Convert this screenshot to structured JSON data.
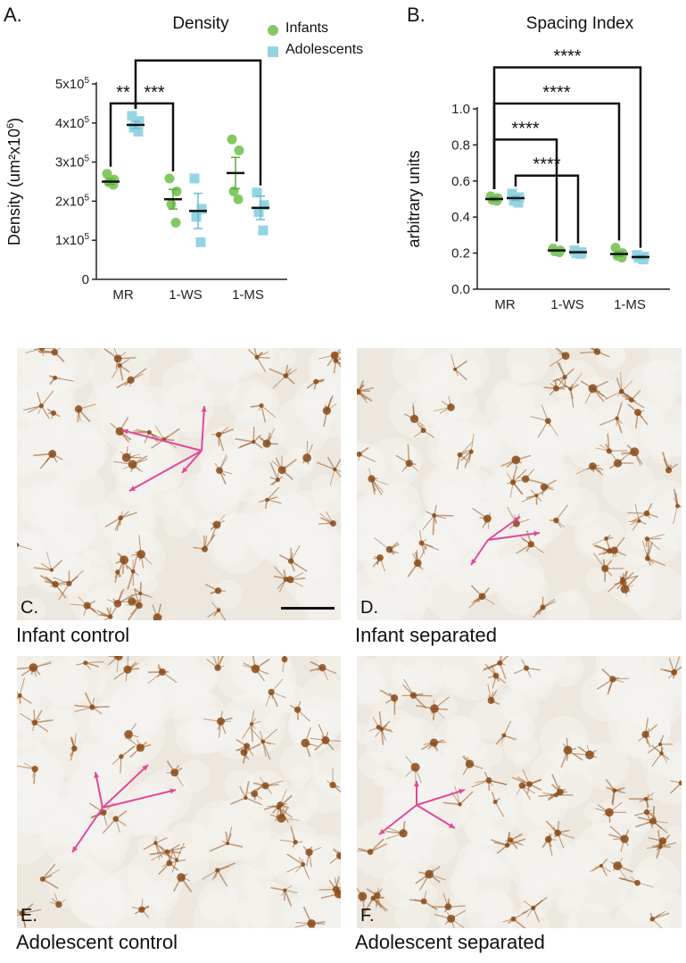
{
  "chart_data": [
    {
      "panel": "A.",
      "type": "scatter",
      "title": "Density",
      "ylabel": "Density (um²x10⁶)",
      "ylim": [
        0,
        500000
      ],
      "categories": [
        "MR",
        "1-WS",
        "1-MS"
      ],
      "yticks": [
        {
          "value": 0,
          "label": "0"
        },
        {
          "value": 100000,
          "label": "1x10⁵"
        },
        {
          "value": 200000,
          "label": "2x10⁵"
        },
        {
          "value": 300000,
          "label": "3x10⁵"
        },
        {
          "value": 400000,
          "label": "4x10⁵"
        },
        {
          "value": 500000,
          "label": "5x10⁵"
        }
      ],
      "series": [
        {
          "name": "Infants",
          "marker": "circle",
          "color": "#84c864",
          "groups": [
            {
              "category": "MR",
              "points": [
                270000,
                255000,
                248000,
                242000
              ],
              "mean": 250000,
              "sem": 7000
            },
            {
              "category": "1-WS",
              "points": [
                258000,
                225000,
                192000,
                145000
              ],
              "mean": 205000,
              "sem": 25000
            },
            {
              "category": "1-MS",
              "points": [
                358000,
                330000,
                225000,
                205000
              ],
              "mean": 272000,
              "sem": 40000
            }
          ]
        },
        {
          "name": "Adolescents",
          "marker": "square",
          "color": "#94d4e2",
          "groups": [
            {
              "category": "MR",
              "points": [
                418000,
                405000,
                388000,
                378000
              ],
              "mean": 395000,
              "sem": 9000
            },
            {
              "category": "1-WS",
              "points": [
                258000,
                180000,
                160000,
                95000
              ],
              "mean": 175000,
              "sem": 45000
            },
            {
              "category": "1-MS",
              "points": [
                222000,
                190000,
                172000,
                125000
              ],
              "mean": 183000,
              "sem": 30000
            }
          ]
        }
      ],
      "significance": [
        {
          "from": "MR-Infants",
          "to": "MR-Adolescents",
          "label": "**",
          "y": 450000
        },
        {
          "from": "MR-Adolescents",
          "to": "1-WS-Infants",
          "label": "***",
          "y": 450000
        },
        {
          "from": "MR-Adolescents",
          "to": "1-MS-Adolescents",
          "label": "***",
          "y": 560000
        }
      ]
    },
    {
      "panel": "B.",
      "type": "scatter",
      "title": "Spacing Index",
      "ylabel": "arbitrary units",
      "ylim": [
        0,
        1.0
      ],
      "categories": [
        "MR",
        "1-WS",
        "1-MS"
      ],
      "yticks": [
        {
          "value": 0,
          "label": "0.0"
        },
        {
          "value": 0.2,
          "label": "0.2"
        },
        {
          "value": 0.4,
          "label": "0.4"
        },
        {
          "value": 0.6,
          "label": "0.6"
        },
        {
          "value": 0.8,
          "label": "0.8"
        },
        {
          "value": 1.0,
          "label": "1.0"
        }
      ],
      "series": [
        {
          "name": "Infants",
          "marker": "circle",
          "color": "#84c864",
          "groups": [
            {
              "category": "MR",
              "points": [
                0.515,
                0.505,
                0.495,
                0.49
              ],
              "mean": 0.5,
              "sem": 0.01
            },
            {
              "category": "1-WS",
              "points": [
                0.225,
                0.215,
                0.21,
                0.205
              ],
              "mean": 0.215,
              "sem": 0.005
            },
            {
              "category": "1-MS",
              "points": [
                0.23,
                0.2,
                0.185,
                0.175
              ],
              "mean": 0.195,
              "sem": 0.012
            }
          ]
        },
        {
          "name": "Adolescents",
          "marker": "square",
          "color": "#94d4e2",
          "groups": [
            {
              "category": "MR",
              "points": [
                0.53,
                0.51,
                0.49,
                0.48
              ],
              "mean": 0.505,
              "sem": 0.012
            },
            {
              "category": "1-WS",
              "points": [
                0.215,
                0.205,
                0.2,
                0.195
              ],
              "mean": 0.205,
              "sem": 0.005
            },
            {
              "category": "1-MS",
              "points": [
                0.19,
                0.18,
                0.175,
                0.165
              ],
              "mean": 0.178,
              "sem": 0.008
            }
          ]
        }
      ],
      "significance": [
        {
          "from": "MR-Infants",
          "to": "1-WS-Infants",
          "label": "****",
          "y": 0.83
        },
        {
          "from": "MR-Adolescents",
          "to": "1-WS-Adolescents",
          "label": "****",
          "y": 0.63
        },
        {
          "from": "MR-Infants",
          "to": "1-MS-Infants",
          "label": "****",
          "y": 1.03
        },
        {
          "from": "MR-Infants",
          "to": "1-MS-Adolescents",
          "label": "****",
          "y": 1.23
        }
      ]
    }
  ],
  "legend": [
    {
      "name": "Infants",
      "marker": "circle",
      "color": "#84c864"
    },
    {
      "name": "Adolescents",
      "marker": "square",
      "color": "#94d4e2"
    }
  ],
  "images": [
    {
      "letter": "C.",
      "caption": "Infant control",
      "scale_bar": true
    },
    {
      "letter": "D.",
      "caption": "Infant separated",
      "scale_bar": false
    },
    {
      "letter": "E.",
      "caption": "Adolescent control",
      "scale_bar": false
    },
    {
      "letter": "F.",
      "caption": "Adolescent separated",
      "scale_bar": false
    }
  ],
  "colors": {
    "arrow": "#e0489a",
    "stain": "#9a5a24",
    "background": "#ece8e0"
  }
}
